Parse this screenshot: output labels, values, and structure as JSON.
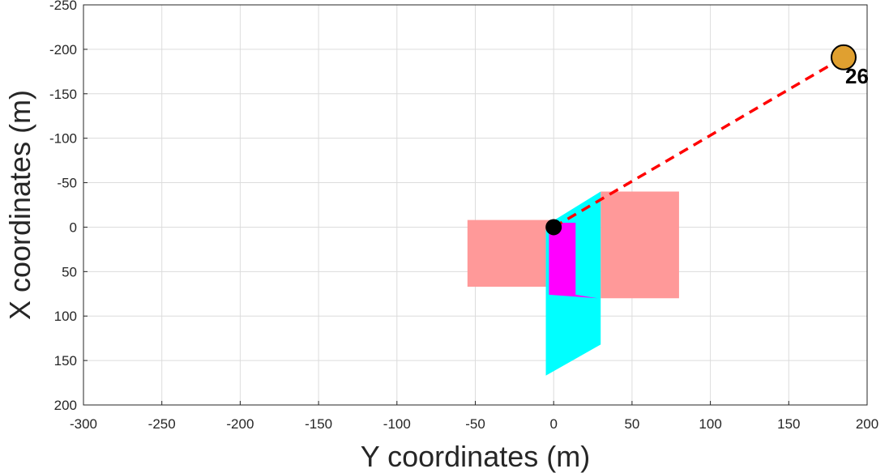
{
  "chart_data": {
    "type": "scatter",
    "title": "",
    "xlabel": "Y coordinates (m)",
    "ylabel": "X coordinates (m)",
    "xlim": [
      -300,
      200
    ],
    "ylim": [
      -250,
      200
    ],
    "y_reversed": true,
    "grid": true,
    "x_ticks": [
      "-300",
      "-250",
      "-200",
      "-150",
      "-100",
      "-50",
      "0",
      "50",
      "100",
      "150",
      "200"
    ],
    "y_ticks": [
      "-250",
      "-200",
      "-150",
      "-100",
      "-50",
      "0",
      "50",
      "100",
      "150",
      "200"
    ],
    "regions": [
      {
        "shape": "rectangle-left",
        "color": "#ff9999",
        "points": [
          [
            -55,
            -8
          ],
          [
            0,
            -8
          ],
          [
            0,
            67
          ],
          [
            -55,
            67
          ]
        ]
      },
      {
        "shape": "rectangle-right",
        "color": "#ff9999",
        "points": [
          [
            30,
            -40
          ],
          [
            80,
            -40
          ],
          [
            80,
            80
          ],
          [
            30,
            80
          ]
        ]
      },
      {
        "shape": "cyan-polygon",
        "color": "#00ffff",
        "points": [
          [
            -5,
            -2
          ],
          [
            30,
            -40
          ],
          [
            30,
            132
          ],
          [
            -5,
            167
          ]
        ]
      },
      {
        "shape": "magenta-polygon",
        "color": "#ff00ff",
        "points": [
          [
            -3,
            -5
          ],
          [
            14,
            -5
          ],
          [
            14,
            76
          ],
          [
            28,
            80
          ],
          [
            -3,
            76
          ]
        ]
      }
    ],
    "origin_point": {
      "x": 0,
      "y": 0,
      "color": "#000000"
    },
    "target_point": {
      "x": 185,
      "y": -191,
      "label": "26",
      "color": "#e0a030"
    },
    "path": {
      "from": [
        0,
        0
      ],
      "to": [
        185,
        -191
      ],
      "color": "#ff0000",
      "style": "dashed"
    }
  }
}
